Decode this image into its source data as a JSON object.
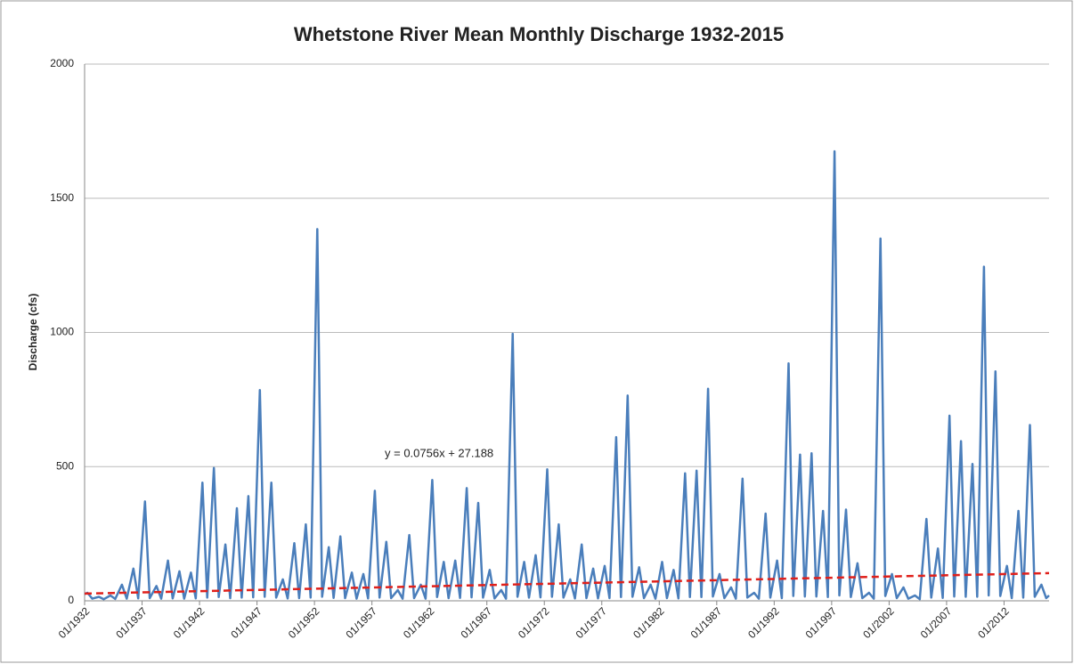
{
  "chart_data": {
    "type": "line",
    "title": "Whetstone River Mean Monthly Discharge 1932-2015",
    "y_label": "Discharge (cfs)",
    "annotation": "y = 0.0756x + 27.188",
    "ylim": [
      0,
      2000
    ],
    "yticks": [
      0,
      500,
      1000,
      1500,
      2000
    ],
    "grid": true,
    "xlim": [
      "01/1932",
      "12/2015"
    ],
    "xticks": [
      "01/1932",
      "01/1937",
      "01/1942",
      "01/1947",
      "01/1952",
      "01/1957",
      "01/1962",
      "01/1967",
      "01/1972",
      "01/1977",
      "01/1982",
      "01/1987",
      "01/1992",
      "01/1997",
      "01/2002",
      "01/2007",
      "01/2012"
    ],
    "series": [
      {
        "color": "#4a7ebb",
        "style": "solid",
        "x": [
          "01/1932",
          "04/1932",
          "09/1932",
          "04/1933",
          "09/1933",
          "04/1934",
          "09/1934",
          "04/1935",
          "09/1935",
          "04/1936",
          "09/1936",
          "04/1937",
          "09/1937",
          "04/1938",
          "09/1938",
          "04/1939",
          "09/1939",
          "04/1940",
          "09/1940",
          "04/1941",
          "09/1941",
          "04/1942",
          "09/1942",
          "04/1943",
          "09/1943",
          "04/1944",
          "09/1944",
          "04/1945",
          "09/1945",
          "04/1946",
          "09/1946",
          "04/1947",
          "09/1947",
          "04/1948",
          "09/1948",
          "04/1949",
          "09/1949",
          "04/1950",
          "09/1950",
          "04/1951",
          "09/1951",
          "04/1952",
          "09/1952",
          "04/1953",
          "09/1953",
          "04/1954",
          "09/1954",
          "04/1955",
          "09/1955",
          "04/1956",
          "09/1956",
          "04/1957",
          "09/1957",
          "04/1958",
          "09/1958",
          "04/1959",
          "09/1959",
          "04/1960",
          "09/1960",
          "04/1961",
          "09/1961",
          "04/1962",
          "09/1962",
          "04/1963",
          "09/1963",
          "04/1964",
          "09/1964",
          "04/1965",
          "09/1965",
          "04/1966",
          "09/1966",
          "04/1967",
          "09/1967",
          "04/1968",
          "09/1968",
          "04/1969",
          "09/1969",
          "04/1970",
          "09/1970",
          "04/1971",
          "09/1971",
          "04/1972",
          "09/1972",
          "04/1973",
          "09/1973",
          "04/1974",
          "09/1974",
          "04/1975",
          "09/1975",
          "04/1976",
          "09/1976",
          "04/1977",
          "09/1977",
          "04/1978",
          "09/1978",
          "04/1979",
          "09/1979",
          "04/1980",
          "09/1980",
          "04/1981",
          "09/1981",
          "04/1982",
          "09/1982",
          "04/1983",
          "09/1983",
          "04/1984",
          "09/1984",
          "04/1985",
          "09/1985",
          "04/1986",
          "09/1986",
          "04/1987",
          "09/1987",
          "04/1988",
          "09/1988",
          "04/1989",
          "09/1989",
          "04/1990",
          "09/1990",
          "04/1991",
          "09/1991",
          "04/1992",
          "09/1992",
          "04/1993",
          "09/1993",
          "04/1994",
          "09/1994",
          "04/1995",
          "09/1995",
          "04/1996",
          "09/1996",
          "04/1997",
          "09/1997",
          "04/1998",
          "09/1998",
          "04/1999",
          "09/1999",
          "04/2000",
          "09/2000",
          "04/2001",
          "09/2001",
          "04/2002",
          "09/2002",
          "04/2003",
          "09/2003",
          "04/2004",
          "09/2004",
          "04/2005",
          "09/2005",
          "04/2006",
          "09/2006",
          "04/2007",
          "09/2007",
          "04/2008",
          "09/2008",
          "04/2009",
          "09/2009",
          "04/2010",
          "09/2010",
          "04/2011",
          "09/2011",
          "04/2012",
          "09/2012",
          "04/2013",
          "09/2013",
          "04/2014",
          "09/2014",
          "04/2015",
          "09/2015",
          "12/2015"
        ],
        "values": [
          25,
          30,
          8,
          15,
          6,
          20,
          7,
          60,
          8,
          120,
          9,
          370,
          10,
          55,
          8,
          150,
          9,
          110,
          8,
          105,
          9,
          440,
          12,
          495,
          14,
          210,
          10,
          345,
          12,
          390,
          13,
          785,
          15,
          440,
          12,
          80,
          9,
          215,
          10,
          285,
          12,
          1385,
          15,
          200,
          11,
          240,
          10,
          105,
          8,
          100,
          9,
          410,
          12,
          220,
          10,
          40,
          8,
          245,
          10,
          60,
          8,
          450,
          14,
          145,
          10,
          150,
          11,
          420,
          13,
          365,
          12,
          115,
          9,
          40,
          8,
          995,
          15,
          145,
          12,
          170,
          13,
          490,
          15,
          285,
          12,
          80,
          9,
          210,
          10,
          120,
          9,
          130,
          10,
          610,
          14,
          765,
          15,
          125,
          10,
          60,
          8,
          145,
          10,
          115,
          9,
          475,
          14,
          485,
          14,
          790,
          16,
          100,
          10,
          50,
          8,
          455,
          12,
          30,
          8,
          325,
          12,
          150,
          10,
          885,
          18,
          545,
          16,
          550,
          16,
          335,
          14,
          1675,
          20,
          340,
          14,
          140,
          10,
          30,
          8,
          1350,
          18,
          100,
          10,
          50,
          8,
          20,
          6,
          305,
          12,
          195,
          11,
          690,
          16,
          595,
          15,
          510,
          15,
          1245,
          20,
          855,
          18,
          130,
          10,
          335,
          12,
          655,
          15,
          60,
          10,
          20
        ]
      },
      {
        "color": "#e0201b",
        "style": "dashed",
        "x": [
          "01/1932",
          "12/2015"
        ],
        "values": [
          27,
          103
        ]
      }
    ]
  }
}
